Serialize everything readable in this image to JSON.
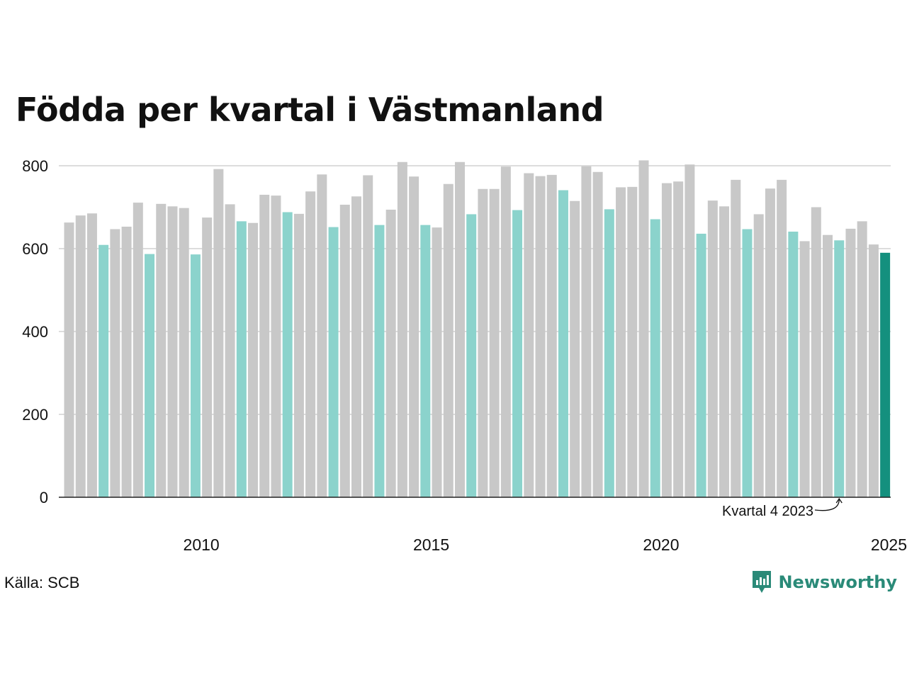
{
  "title": "Födda per kvartal i Västmanland",
  "source": "Källa: SCB",
  "brand": "Newsworthy",
  "colors": {
    "default": "#c8c8c8",
    "q4": "#8bd3cc",
    "latest": "#14907e",
    "grid": "#dddddd",
    "axis": "#222222",
    "brand": "#2a8a78"
  },
  "chart_data": {
    "type": "bar",
    "xlabel": "",
    "ylabel": "",
    "ylim": [
      0,
      800
    ],
    "yticks": [
      0,
      200,
      400,
      600,
      800
    ],
    "xtick_labels": [
      "2010",
      "2015",
      "2020",
      "2025"
    ],
    "grid": true,
    "annotation": "Kvartal 4 2023",
    "series": [
      {
        "quarters": [
          "2007 Q1",
          "2007 Q2",
          "2007 Q3",
          "2007 Q4",
          "2008 Q1",
          "2008 Q2",
          "2008 Q3",
          "2008 Q4",
          "2009 Q1",
          "2009 Q2",
          "2009 Q3",
          "2009 Q4",
          "2010 Q1",
          "2010 Q2",
          "2010 Q3",
          "2010 Q4",
          "2011 Q1",
          "2011 Q2",
          "2011 Q3",
          "2011 Q4",
          "2012 Q1",
          "2012 Q2",
          "2012 Q3",
          "2012 Q4",
          "2013 Q1",
          "2013 Q2",
          "2013 Q3",
          "2013 Q4",
          "2014 Q1",
          "2014 Q2",
          "2014 Q3",
          "2014 Q4",
          "2015 Q1",
          "2015 Q2",
          "2015 Q3",
          "2015 Q4",
          "2016 Q1",
          "2016 Q2",
          "2016 Q3",
          "2016 Q4",
          "2017 Q1",
          "2017 Q2",
          "2017 Q3",
          "2017 Q4",
          "2018 Q1",
          "2018 Q2",
          "2018 Q3",
          "2018 Q4",
          "2019 Q1",
          "2019 Q2",
          "2019 Q3",
          "2019 Q4",
          "2020 Q1",
          "2020 Q2",
          "2020 Q3",
          "2020 Q4",
          "2021 Q1",
          "2021 Q2",
          "2021 Q3",
          "2021 Q4",
          "2022 Q1",
          "2022 Q2",
          "2022 Q3",
          "2022 Q4",
          "2023 Q1",
          "2023 Q2",
          "2023 Q3",
          "2023 Q4",
          "2024 Q1",
          "2024 Q2",
          "2024 Q3",
          "2024 Q4"
        ],
        "values": [
          663,
          680,
          685,
          609,
          647,
          653,
          711,
          587,
          708,
          702,
          698,
          586,
          675,
          792,
          707,
          666,
          662,
          730,
          728,
          688,
          684,
          738,
          779,
          652,
          706,
          726,
          777,
          657,
          694,
          809,
          774,
          657,
          651,
          756,
          809,
          683,
          744,
          744,
          798,
          693,
          782,
          775,
          778,
          741,
          715,
          799,
          785,
          695,
          748,
          749,
          813,
          671,
          758,
          762,
          803,
          636,
          716,
          702,
          766,
          647,
          683,
          745,
          766,
          641,
          618,
          700,
          633,
          620,
          648,
          666,
          610,
          590
        ]
      }
    ]
  }
}
